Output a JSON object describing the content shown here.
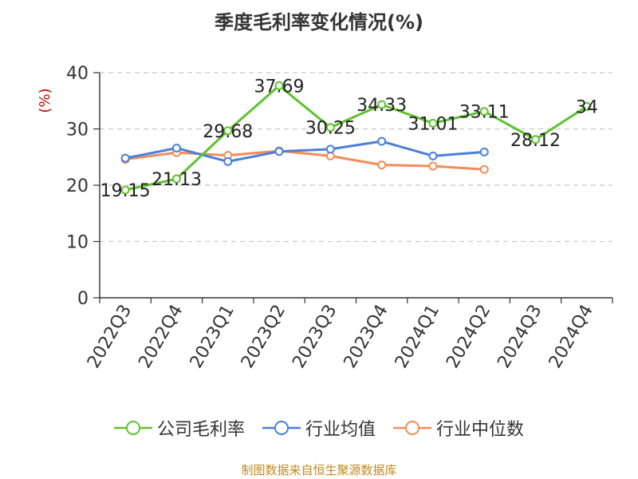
{
  "chart_data": {
    "type": "line",
    "title": "季度毛利率变化情况(%)",
    "ylabel": "(%)",
    "xlabel": "",
    "categories": [
      "2022Q3",
      "2022Q4",
      "2023Q1",
      "2023Q2",
      "2023Q3",
      "2023Q4",
      "2024Q1",
      "2024Q2",
      "2024Q3",
      "2024Q4"
    ],
    "ylim": [
      0,
      40
    ],
    "yticks": [
      0,
      10,
      20,
      30,
      40
    ],
    "grid": "horizontal-dashed",
    "legend": "bottom",
    "series": [
      {
        "name": "公司毛利率",
        "color": "#5ec22e",
        "values": [
          19.15,
          21.13,
          29.68,
          37.69,
          30.25,
          34.33,
          31.01,
          33.11,
          28.12,
          34
        ],
        "labels": [
          "19.15",
          "21.13",
          "29.68",
          "37.69",
          "30.25",
          "34.33",
          "31.01",
          "33.11",
          "28.12",
          "34"
        ]
      },
      {
        "name": "行业均值",
        "color": "#4a7fdc",
        "values": [
          24.8,
          26.6,
          24.2,
          26.0,
          26.4,
          27.8,
          25.2,
          25.9,
          null,
          null
        ]
      },
      {
        "name": "行业中位数",
        "color": "#f28c58",
        "values": [
          24.6,
          25.8,
          25.3,
          26.1,
          25.2,
          23.6,
          23.4,
          22.8,
          null,
          null
        ]
      }
    ]
  },
  "source": "制图数据来自恒生聚源数据库"
}
